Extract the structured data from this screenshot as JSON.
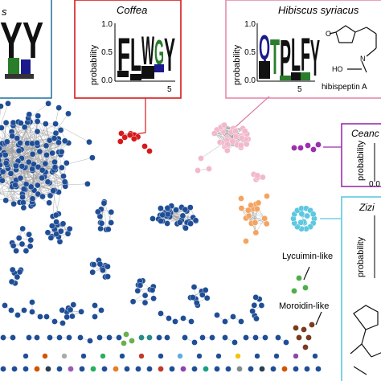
{
  "colors": {
    "network_blue": "#1f4e96",
    "coffea_red": "#d7191c",
    "hibiscus_pink": "#f2b8cc",
    "ceanothus_purple": "#9b2fae",
    "ziziphus_cyan": "#5ec8e0",
    "orange": "#f4a460",
    "lycuimin_green": "#4daf4a",
    "moroidin_brown": "#7a3b1e",
    "edge_gray": "#b0b0b0"
  },
  "panels": {
    "left_partial": {
      "title_fragment": "s",
      "logo_letters": [
        "Y",
        "Y"
      ]
    },
    "coffea": {
      "title": "Coffea",
      "ylabel": "probability",
      "ytick_top": "1.0",
      "ytick_mid": "0.5",
      "ytick_bottom": "0.0",
      "logo": "FLWGY",
      "xtick": "5"
    },
    "hibiscus": {
      "title": "Hibiscus syriacus",
      "ylabel": "probability",
      "ytick_top": "1.0",
      "ytick_mid": "0.5",
      "ytick_bottom": "0.0",
      "logo": "QTPLFY",
      "xtick": "5",
      "compound": "hibispeptin A",
      "ho_label": "HO",
      "n_label": "N"
    },
    "ceanothus": {
      "title": "Ceanc",
      "ylabel": "probability",
      "ytick_bottom": "0.0"
    },
    "ziziphus": {
      "title": "Zizi",
      "ylabel": "probability"
    }
  },
  "cluster_labels": {
    "lycuimin": "Lycuimin-like",
    "moroidin": "Moroidin-like"
  }
}
